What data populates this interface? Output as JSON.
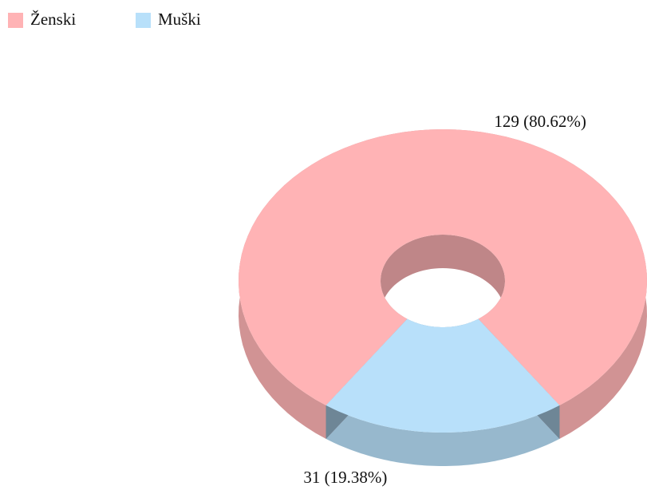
{
  "chart_data": {
    "type": "donut3d",
    "categories": [
      "Ženski",
      "Muški"
    ],
    "values": [
      129,
      31
    ],
    "value_labels": [
      "129 (80.62%)",
      "31 (19.38%)"
    ],
    "colors": [
      "#ffb3b5",
      "#b8e0fa"
    ],
    "legend": "top-left"
  }
}
